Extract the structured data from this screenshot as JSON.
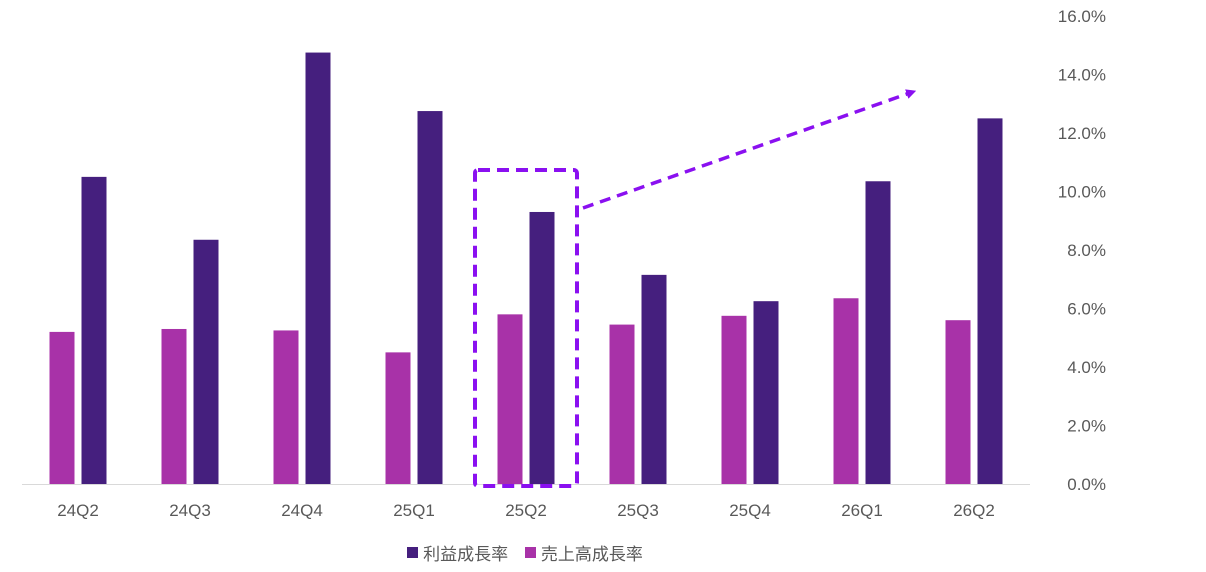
{
  "chart_data": {
    "type": "bar",
    "categories": [
      "24Q2",
      "24Q3",
      "24Q4",
      "25Q1",
      "25Q2",
      "25Q3",
      "25Q4",
      "26Q1",
      "26Q2"
    ],
    "series": [
      {
        "name": "売上高成長率",
        "color": "#a832a8",
        "values": [
          5.2,
          5.3,
          5.25,
          4.5,
          5.8,
          5.45,
          5.75,
          6.35,
          5.6
        ]
      },
      {
        "name": "利益成長率",
        "color": "#451f7e",
        "values": [
          10.5,
          8.35,
          14.75,
          12.75,
          9.3,
          7.15,
          6.25,
          10.35,
          12.5
        ]
      }
    ],
    "ylim": [
      0,
      16
    ],
    "yticks": [
      "0.0%",
      "2.0%",
      "4.0%",
      "6.0%",
      "8.0%",
      "10.0%",
      "12.0%",
      "14.0%",
      "16.0%"
    ],
    "y_axis_side": "right",
    "legend": [
      "利益成長率",
      "売上高成長率"
    ],
    "highlight": {
      "category": "25Q2",
      "color": "#8a10f0",
      "style": "dashed box with dashed arrow pointing up-right"
    }
  }
}
